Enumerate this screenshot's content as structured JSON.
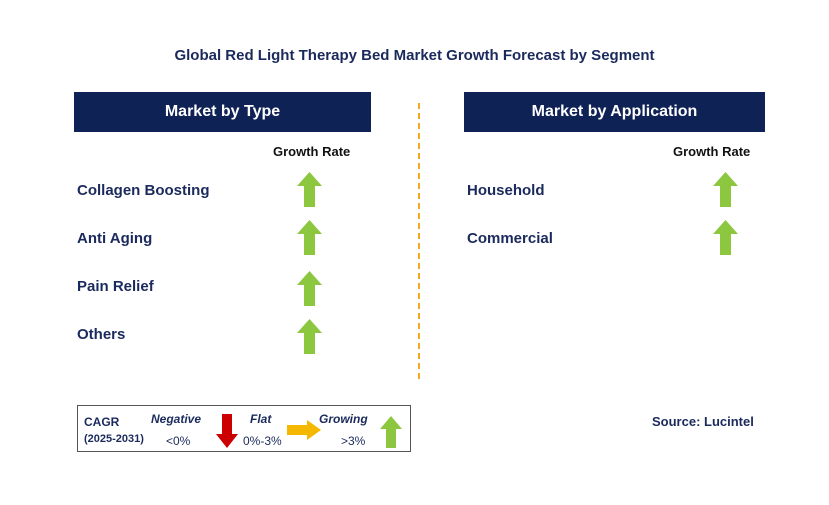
{
  "title": "Global Red Light Therapy Bed Market Growth Forecast by Segment",
  "left_panel": {
    "header": "Market by Type",
    "growth_label": "Growth Rate",
    "items": [
      {
        "label": "Collagen Boosting",
        "trend": "growing"
      },
      {
        "label": "Anti Aging",
        "trend": "growing"
      },
      {
        "label": "Pain Relief",
        "trend": "growing"
      },
      {
        "label": "Others",
        "trend": "growing"
      }
    ]
  },
  "right_panel": {
    "header": "Market by Application",
    "growth_label": "Growth Rate",
    "items": [
      {
        "label": "Household",
        "trend": "growing"
      },
      {
        "label": "Commercial",
        "trend": "growing"
      }
    ]
  },
  "legend": {
    "cagr": "CAGR",
    "period": "(2025-2031)",
    "negative_label": "Negative",
    "negative_range": "<0%",
    "flat_label": "Flat",
    "flat_range": "0%-3%",
    "growing_label": "Growing",
    "growing_range": ">3%"
  },
  "source": "Source: Lucintel",
  "colors": {
    "header_bg": "#0f2256",
    "growing": "#8dc63f",
    "negative": "#cc0000",
    "flat": "#f5b800",
    "divider": "#f5a623"
  }
}
